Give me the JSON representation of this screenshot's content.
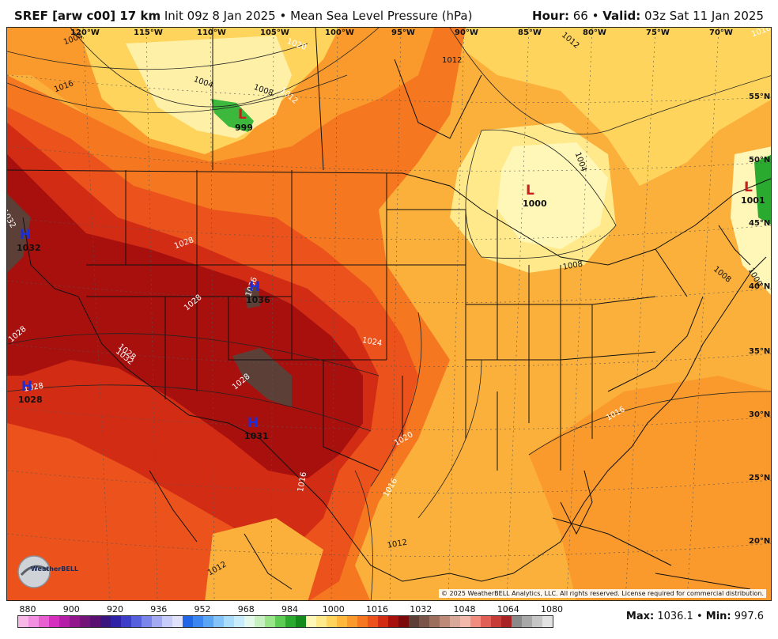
{
  "header": {
    "model": "SREF [arw c00] 17 km",
    "init": "Init 09z 8 Jan 2025",
    "bullet": "•",
    "field": "Mean Sea Level Pressure (hPa)",
    "hour_label": "Hour:",
    "hour_value": "66",
    "valid_label": "Valid:",
    "valid_value": "03z Sat 11 Jan 2025"
  },
  "map": {
    "lon_labels": [
      "120°W",
      "115°W",
      "110°W",
      "105°W",
      "100°W",
      "95°W",
      "90°W",
      "85°W",
      "80°W",
      "75°W",
      "70°W"
    ],
    "lat_labels": [
      "55°N",
      "50°N",
      "45°N",
      "40°N",
      "35°N",
      "30°N",
      "25°N",
      "20°N"
    ],
    "pressure_centers": [
      {
        "type": "L",
        "value": "999",
        "color": "#c81e1e"
      },
      {
        "type": "L",
        "value": "1000",
        "color": "#c81e1e"
      },
      {
        "type": "L",
        "value": "1001",
        "color": "#c81e1e"
      },
      {
        "type": "H",
        "value": "1032",
        "color": "#1a2ee0"
      },
      {
        "type": "H",
        "value": "1036",
        "color": "#1a2ee0"
      },
      {
        "type": "H",
        "value": "1031",
        "color": "#1a2ee0"
      },
      {
        "type": "H",
        "value": "1028",
        "color": "#1a2ee0"
      }
    ],
    "contour_labels": [
      "1004",
      "1016",
      "1004",
      "1008",
      "1012",
      "1020",
      "1012",
      "1012",
      "1016",
      "1004",
      "1008",
      "1008",
      "1032",
      "1028",
      "1028",
      "1036",
      "1028",
      "1032",
      "1024",
      "1028",
      "1020",
      "1016",
      "1016",
      "1016",
      "1012",
      "1012",
      "1028",
      "1028",
      "1000"
    ],
    "copyright": "© 2025 WeatherBELL Analytics, LLC. All rights reserved. License required for commercial distribution.",
    "logo_text": "WeatherBELL"
  },
  "colorbar": {
    "ticks": [
      "880",
      "900",
      "920",
      "936",
      "952",
      "968",
      "984",
      "1000",
      "1016",
      "1032",
      "1048",
      "1064",
      "1080"
    ],
    "colors": [
      "#f7b8e8",
      "#f28fe0",
      "#e85fd2",
      "#d42fbf",
      "#b51ea6",
      "#93178c",
      "#721478",
      "#5a1070",
      "#3a1580",
      "#2f22a6",
      "#3c3ec8",
      "#5560dc",
      "#7a86ea",
      "#a3aaf2",
      "#c8ccf8",
      "#e0e2fc",
      "#2266e8",
      "#3b86f0",
      "#5aa6f5",
      "#85c4f8",
      "#aadcfb",
      "#c8ecfc",
      "#e4f8ec",
      "#c6f0c0",
      "#9ae48a",
      "#5ccc54",
      "#2aaa2e",
      "#158a1c",
      "#fff7b8",
      "#ffe98a",
      "#ffd45c",
      "#ffb83c",
      "#fb9a2c",
      "#f57820",
      "#eb521c",
      "#d22c14",
      "#a8100e",
      "#7c0a0a",
      "#5c4038",
      "#7a5448",
      "#9c6e5c",
      "#bc8a76",
      "#d8a898",
      "#f2b8aa",
      "#f08c80",
      "#e06058",
      "#c83c38",
      "#a82424",
      "#8a8a8a",
      "#a8a8a8",
      "#c6c6c6",
      "#e2e2e2"
    ]
  },
  "stats": {
    "max_label": "Max:",
    "max_value": "1036.1",
    "sep": "•",
    "min_label": "Min:",
    "min_value": "997.6"
  }
}
